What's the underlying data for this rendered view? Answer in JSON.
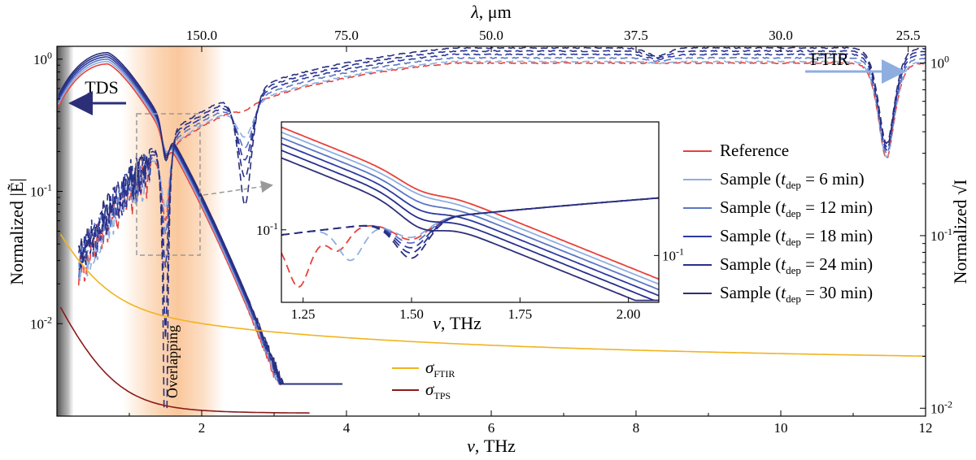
{
  "chart_data": {
    "type": "line",
    "x_axis": {
      "label_symbol": "ν",
      "label_unit": ", THz",
      "range": [
        0,
        12
      ],
      "ticks": [
        "2",
        "4",
        "6",
        "8",
        "10",
        "12"
      ],
      "tick_values": [
        2,
        4,
        6,
        8,
        10,
        12
      ]
    },
    "top_axis": {
      "label_symbol": "λ",
      "label_unit": ", μm",
      "ticks": [
        "150.0",
        "75.0",
        "50.0",
        "37.5",
        "30.0",
        "25.5"
      ],
      "tick_freq_thz": [
        2.0,
        4.0,
        6.0,
        8.0,
        10.0,
        11.76
      ]
    },
    "y_left": {
      "label": "Normalized |Ẽ|",
      "scale": "log",
      "range": [
        0.002,
        1.25
      ],
      "ticks": [
        {
          "base": "10",
          "exp": "0",
          "value": 1
        },
        {
          "base": "10",
          "exp": "-1",
          "value": 0.1
        },
        {
          "base": "10",
          "exp": "-2",
          "value": 0.01
        }
      ]
    },
    "y_right": {
      "label": "Normalized √I",
      "scale": "log",
      "range": [
        0.009,
        1.25
      ],
      "ticks": [
        {
          "base": "10",
          "exp": "0",
          "value": 1
        },
        {
          "base": "10",
          "exp": "-1",
          "value": 0.1
        },
        {
          "base": "10",
          "exp": "-2",
          "value": 0.01
        }
      ]
    },
    "annotations": {
      "tds": "TDS",
      "ftir": "FTIR",
      "overlap": "Overlapping",
      "overlap_range_thz": [
        0.9,
        2.3
      ]
    },
    "series": [
      {
        "name": "Reference",
        "dep_min": null,
        "color": "#e8413a",
        "dip_scale": 1.0
      },
      {
        "name": "Sample",
        "dep_min": "6",
        "color": "#8eaee0",
        "dip_scale": 0.9
      },
      {
        "name": "Sample",
        "dep_min": "12",
        "color": "#5a76c4",
        "dip_scale": 1.15
      },
      {
        "name": "Sample",
        "dep_min": "18",
        "color": "#2e3aa0",
        "dip_scale": 1.35
      },
      {
        "name": "Sample",
        "dep_min": "24",
        "color": "#26308c",
        "dip_scale": 1.55
      },
      {
        "name": "Sample",
        "dep_min": "30",
        "color": "#2c2f78",
        "dip_scale": 1.75
      }
    ],
    "legend_sub": "dep",
    "legend_unit": "min",
    "noise_series": [
      {
        "name": "σ",
        "sub": "FTIR",
        "color": "#f0b41e"
      },
      {
        "name": "σ",
        "sub": "TPS",
        "color": "#8b1a1a"
      }
    ],
    "inset": {
      "x_range": [
        1.2,
        2.07
      ],
      "x_ticks": [
        "1.25",
        "1.50",
        "1.75",
        "2.00"
      ],
      "x_tick_values": [
        1.25,
        1.5,
        1.75,
        2.0
      ],
      "xlabel_symbol": "ν",
      "xlabel_unit": ", THz",
      "y_left_tick": {
        "base": "10",
        "exp": "-1"
      },
      "y_right_tick": {
        "base": "10",
        "exp": "-1"
      }
    }
  }
}
